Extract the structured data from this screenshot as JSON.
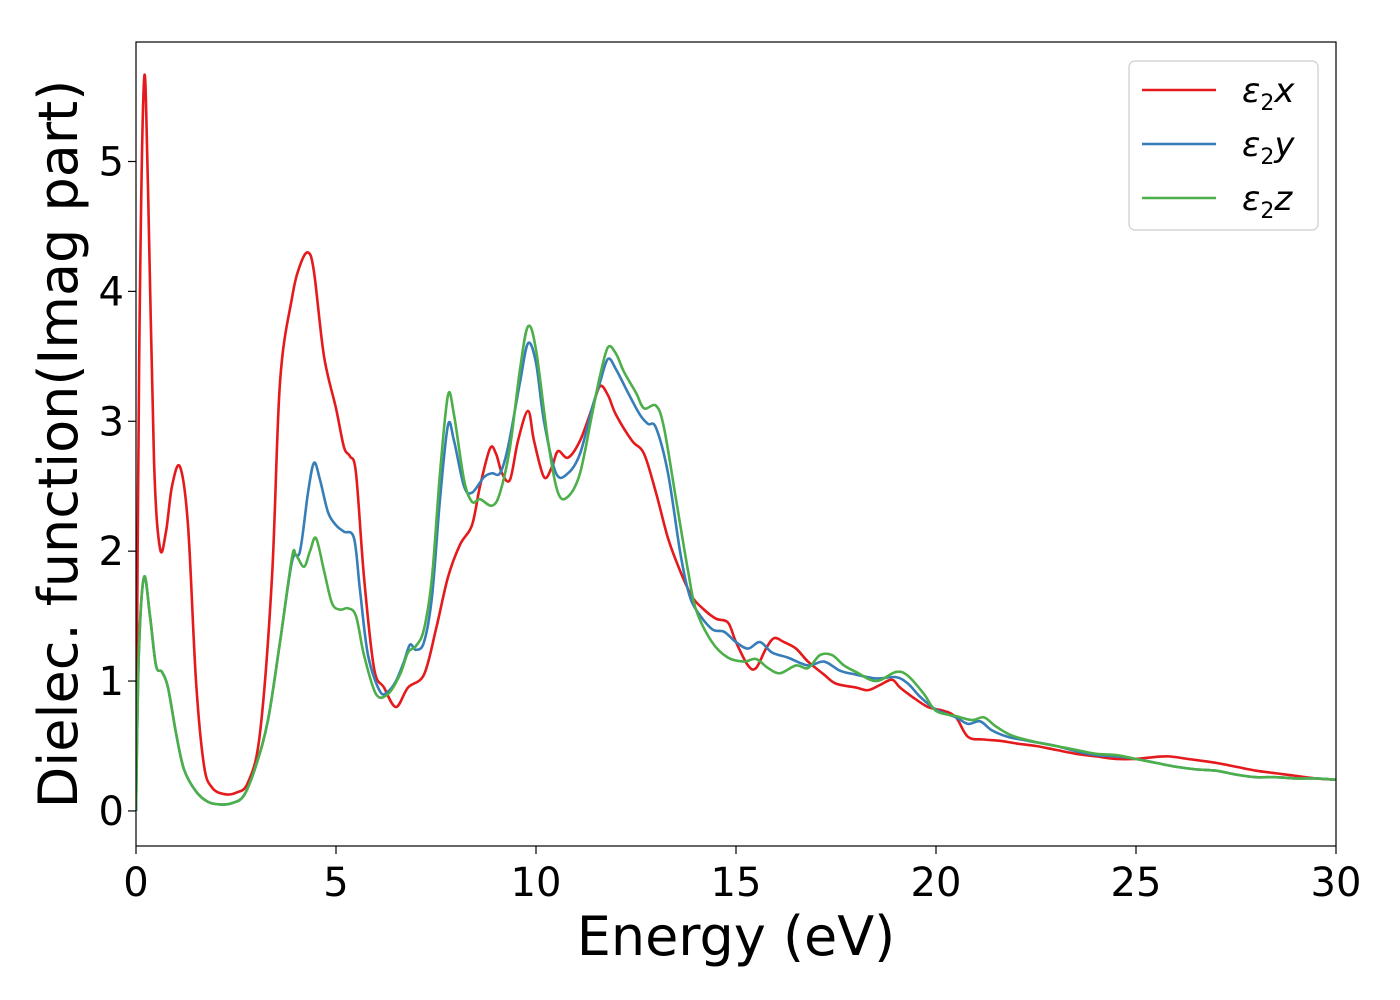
{
  "chart_data": {
    "type": "line",
    "xlabel": "Energy (eV)",
    "ylabel": "Dielec. function(Imag part)",
    "xlim": [
      0,
      30
    ],
    "ylim": [
      -0.27,
      5.92
    ],
    "xticks": [
      "0",
      "5",
      "10",
      "15",
      "20",
      "25",
      "30"
    ],
    "yticks": [
      "0",
      "1",
      "2",
      "3",
      "4",
      "5"
    ],
    "legend_position": "top-right",
    "grid": false,
    "series": [
      {
        "name": "ε2x",
        "legend": {
          "symbol": "ε",
          "sub": "2",
          "axis": "x"
        },
        "color": "#e41a1c",
        "points": [
          [
            0,
            0
          ],
          [
            0.08,
            3.5
          ],
          [
            0.2,
            5.62
          ],
          [
            0.3,
            4.8
          ],
          [
            0.45,
            2.7
          ],
          [
            0.6,
            2.02
          ],
          [
            0.75,
            2.15
          ],
          [
            0.9,
            2.5
          ],
          [
            1.1,
            2.65
          ],
          [
            1.3,
            2.2
          ],
          [
            1.5,
            1.0
          ],
          [
            1.7,
            0.35
          ],
          [
            1.9,
            0.18
          ],
          [
            2.2,
            0.13
          ],
          [
            2.5,
            0.14
          ],
          [
            2.8,
            0.22
          ],
          [
            3.1,
            0.6
          ],
          [
            3.4,
            1.8
          ],
          [
            3.6,
            3.3
          ],
          [
            3.9,
            3.95
          ],
          [
            4.1,
            4.2
          ],
          [
            4.3,
            4.3
          ],
          [
            4.45,
            4.15
          ],
          [
            4.7,
            3.5
          ],
          [
            5.0,
            3.1
          ],
          [
            5.2,
            2.8
          ],
          [
            5.35,
            2.73
          ],
          [
            5.5,
            2.6
          ],
          [
            5.7,
            1.8
          ],
          [
            5.95,
            1.1
          ],
          [
            6.2,
            0.95
          ],
          [
            6.5,
            0.8
          ],
          [
            6.8,
            0.95
          ],
          [
            7.2,
            1.05
          ],
          [
            7.5,
            1.4
          ],
          [
            7.8,
            1.8
          ],
          [
            8.1,
            2.05
          ],
          [
            8.4,
            2.2
          ],
          [
            8.6,
            2.5
          ],
          [
            8.85,
            2.79
          ],
          [
            9.0,
            2.75
          ],
          [
            9.15,
            2.6
          ],
          [
            9.35,
            2.55
          ],
          [
            9.55,
            2.85
          ],
          [
            9.8,
            3.08
          ],
          [
            9.95,
            2.85
          ],
          [
            10.2,
            2.57
          ],
          [
            10.4,
            2.65
          ],
          [
            10.55,
            2.77
          ],
          [
            10.8,
            2.72
          ],
          [
            11.1,
            2.85
          ],
          [
            11.4,
            3.1
          ],
          [
            11.6,
            3.27
          ],
          [
            11.8,
            3.2
          ],
          [
            12.0,
            3.05
          ],
          [
            12.4,
            2.85
          ],
          [
            12.7,
            2.75
          ],
          [
            13.0,
            2.45
          ],
          [
            13.3,
            2.1
          ],
          [
            13.6,
            1.85
          ],
          [
            13.9,
            1.65
          ],
          [
            14.2,
            1.55
          ],
          [
            14.5,
            1.48
          ],
          [
            14.8,
            1.45
          ],
          [
            15.0,
            1.3
          ],
          [
            15.3,
            1.12
          ],
          [
            15.5,
            1.1
          ],
          [
            15.75,
            1.25
          ],
          [
            15.95,
            1.33
          ],
          [
            16.2,
            1.3
          ],
          [
            16.5,
            1.25
          ],
          [
            16.8,
            1.15
          ],
          [
            17.2,
            1.05
          ],
          [
            17.5,
            0.98
          ],
          [
            18.0,
            0.95
          ],
          [
            18.3,
            0.93
          ],
          [
            18.6,
            0.97
          ],
          [
            18.9,
            1.01
          ],
          [
            19.1,
            0.95
          ],
          [
            19.4,
            0.88
          ],
          [
            19.8,
            0.8
          ],
          [
            20.2,
            0.77
          ],
          [
            20.5,
            0.72
          ],
          [
            20.8,
            0.57
          ],
          [
            21.2,
            0.55
          ],
          [
            21.6,
            0.54
          ],
          [
            22.0,
            0.52
          ],
          [
            22.5,
            0.5
          ],
          [
            23.0,
            0.47
          ],
          [
            23.5,
            0.44
          ],
          [
            24.0,
            0.42
          ],
          [
            24.5,
            0.4
          ],
          [
            25.0,
            0.4
          ],
          [
            25.3,
            0.41
          ],
          [
            25.8,
            0.42
          ],
          [
            26.3,
            0.4
          ],
          [
            27.0,
            0.37
          ],
          [
            27.5,
            0.34
          ],
          [
            28.0,
            0.31
          ],
          [
            28.5,
            0.29
          ],
          [
            29.0,
            0.27
          ],
          [
            29.5,
            0.25
          ],
          [
            30.0,
            0.24
          ]
        ]
      },
      {
        "name": "ε2y",
        "legend": {
          "symbol": "ε",
          "sub": "2",
          "axis": "y"
        },
        "color": "#377eb8",
        "points": [
          [
            0,
            0
          ],
          [
            0.07,
            1.2
          ],
          [
            0.2,
            1.8
          ],
          [
            0.35,
            1.5
          ],
          [
            0.5,
            1.12
          ],
          [
            0.65,
            1.07
          ],
          [
            0.8,
            0.95
          ],
          [
            1.0,
            0.6
          ],
          [
            1.2,
            0.32
          ],
          [
            1.5,
            0.15
          ],
          [
            1.8,
            0.07
          ],
          [
            2.1,
            0.05
          ],
          [
            2.4,
            0.06
          ],
          [
            2.7,
            0.12
          ],
          [
            3.0,
            0.35
          ],
          [
            3.3,
            0.7
          ],
          [
            3.6,
            1.3
          ],
          [
            3.9,
            1.92
          ],
          [
            4.1,
            2.0
          ],
          [
            4.3,
            2.45
          ],
          [
            4.45,
            2.68
          ],
          [
            4.6,
            2.55
          ],
          [
            4.8,
            2.3
          ],
          [
            5.0,
            2.2
          ],
          [
            5.2,
            2.15
          ],
          [
            5.45,
            2.1
          ],
          [
            5.6,
            1.7
          ],
          [
            5.8,
            1.2
          ],
          [
            6.1,
            0.92
          ],
          [
            6.3,
            0.92
          ],
          [
            6.5,
            1.0
          ],
          [
            6.7,
            1.15
          ],
          [
            6.85,
            1.28
          ],
          [
            7.0,
            1.24
          ],
          [
            7.2,
            1.3
          ],
          [
            7.4,
            1.65
          ],
          [
            7.6,
            2.4
          ],
          [
            7.8,
            2.97
          ],
          [
            7.95,
            2.85
          ],
          [
            8.2,
            2.5
          ],
          [
            8.4,
            2.45
          ],
          [
            8.7,
            2.57
          ],
          [
            8.9,
            2.6
          ],
          [
            9.1,
            2.6
          ],
          [
            9.3,
            2.8
          ],
          [
            9.6,
            3.3
          ],
          [
            9.8,
            3.6
          ],
          [
            10.0,
            3.45
          ],
          [
            10.2,
            3.0
          ],
          [
            10.5,
            2.6
          ],
          [
            10.8,
            2.6
          ],
          [
            11.1,
            2.75
          ],
          [
            11.4,
            3.1
          ],
          [
            11.6,
            3.3
          ],
          [
            11.8,
            3.48
          ],
          [
            12.0,
            3.4
          ],
          [
            12.3,
            3.22
          ],
          [
            12.6,
            3.05
          ],
          [
            12.8,
            2.98
          ],
          [
            13.0,
            2.95
          ],
          [
            13.3,
            2.6
          ],
          [
            13.6,
            2.0
          ],
          [
            13.8,
            1.7
          ],
          [
            14.0,
            1.55
          ],
          [
            14.4,
            1.4
          ],
          [
            14.7,
            1.38
          ],
          [
            15.0,
            1.3
          ],
          [
            15.3,
            1.25
          ],
          [
            15.6,
            1.3
          ],
          [
            15.9,
            1.22
          ],
          [
            16.3,
            1.18
          ],
          [
            16.8,
            1.12
          ],
          [
            17.2,
            1.15
          ],
          [
            17.6,
            1.08
          ],
          [
            18.0,
            1.05
          ],
          [
            18.5,
            1.02
          ],
          [
            19.0,
            1.03
          ],
          [
            19.3,
            0.98
          ],
          [
            19.6,
            0.88
          ],
          [
            20.0,
            0.78
          ],
          [
            20.5,
            0.72
          ],
          [
            20.8,
            0.67
          ],
          [
            21.1,
            0.69
          ],
          [
            21.4,
            0.62
          ],
          [
            21.8,
            0.57
          ],
          [
            22.3,
            0.54
          ],
          [
            23.0,
            0.5
          ],
          [
            23.5,
            0.46
          ],
          [
            24.0,
            0.43
          ],
          [
            24.5,
            0.42
          ],
          [
            25.0,
            0.4
          ],
          [
            25.5,
            0.37
          ],
          [
            26.0,
            0.34
          ],
          [
            26.5,
            0.32
          ],
          [
            27.0,
            0.31
          ],
          [
            27.5,
            0.28
          ],
          [
            28.0,
            0.26
          ],
          [
            28.5,
            0.26
          ],
          [
            29.0,
            0.25
          ],
          [
            29.5,
            0.25
          ],
          [
            30.0,
            0.24
          ]
        ]
      },
      {
        "name": "ε2z",
        "legend": {
          "symbol": "ε",
          "sub": "2",
          "axis": "z"
        },
        "color": "#4daf4a",
        "points": [
          [
            0,
            0
          ],
          [
            0.07,
            1.2
          ],
          [
            0.2,
            1.8
          ],
          [
            0.35,
            1.5
          ],
          [
            0.5,
            1.12
          ],
          [
            0.65,
            1.07
          ],
          [
            0.8,
            0.95
          ],
          [
            1.0,
            0.6
          ],
          [
            1.2,
            0.32
          ],
          [
            1.5,
            0.15
          ],
          [
            1.8,
            0.07
          ],
          [
            2.1,
            0.05
          ],
          [
            2.4,
            0.06
          ],
          [
            2.7,
            0.12
          ],
          [
            3.0,
            0.35
          ],
          [
            3.3,
            0.7
          ],
          [
            3.6,
            1.3
          ],
          [
            3.9,
            1.95
          ],
          [
            4.0,
            1.97
          ],
          [
            4.2,
            1.88
          ],
          [
            4.35,
            2.0
          ],
          [
            4.5,
            2.1
          ],
          [
            4.7,
            1.85
          ],
          [
            4.9,
            1.6
          ],
          [
            5.1,
            1.55
          ],
          [
            5.3,
            1.56
          ],
          [
            5.5,
            1.5
          ],
          [
            5.7,
            1.2
          ],
          [
            6.0,
            0.9
          ],
          [
            6.3,
            0.9
          ],
          [
            6.6,
            1.05
          ],
          [
            6.8,
            1.22
          ],
          [
            7.0,
            1.27
          ],
          [
            7.2,
            1.4
          ],
          [
            7.4,
            1.8
          ],
          [
            7.6,
            2.6
          ],
          [
            7.8,
            3.2
          ],
          [
            7.95,
            3.05
          ],
          [
            8.2,
            2.55
          ],
          [
            8.4,
            2.38
          ],
          [
            8.6,
            2.4
          ],
          [
            8.9,
            2.35
          ],
          [
            9.1,
            2.45
          ],
          [
            9.35,
            2.8
          ],
          [
            9.6,
            3.4
          ],
          [
            9.8,
            3.73
          ],
          [
            10.0,
            3.55
          ],
          [
            10.3,
            2.85
          ],
          [
            10.55,
            2.45
          ],
          [
            10.8,
            2.42
          ],
          [
            11.1,
            2.6
          ],
          [
            11.4,
            3.05
          ],
          [
            11.6,
            3.35
          ],
          [
            11.8,
            3.57
          ],
          [
            12.0,
            3.52
          ],
          [
            12.2,
            3.38
          ],
          [
            12.5,
            3.22
          ],
          [
            12.7,
            3.1
          ],
          [
            13.0,
            3.12
          ],
          [
            13.2,
            2.95
          ],
          [
            13.5,
            2.4
          ],
          [
            13.8,
            1.85
          ],
          [
            14.0,
            1.55
          ],
          [
            14.4,
            1.3
          ],
          [
            14.8,
            1.18
          ],
          [
            15.2,
            1.15
          ],
          [
            15.5,
            1.17
          ],
          [
            15.8,
            1.1
          ],
          [
            16.1,
            1.06
          ],
          [
            16.5,
            1.12
          ],
          [
            16.8,
            1.1
          ],
          [
            17.1,
            1.2
          ],
          [
            17.4,
            1.2
          ],
          [
            17.7,
            1.12
          ],
          [
            18.0,
            1.07
          ],
          [
            18.5,
            1.0
          ],
          [
            19.0,
            1.07
          ],
          [
            19.3,
            1.04
          ],
          [
            19.7,
            0.9
          ],
          [
            20.0,
            0.77
          ],
          [
            20.5,
            0.73
          ],
          [
            20.9,
            0.7
          ],
          [
            21.2,
            0.72
          ],
          [
            21.5,
            0.65
          ],
          [
            21.9,
            0.58
          ],
          [
            22.5,
            0.53
          ],
          [
            23.0,
            0.5
          ],
          [
            23.5,
            0.47
          ],
          [
            24.0,
            0.44
          ],
          [
            24.5,
            0.43
          ],
          [
            25.0,
            0.4
          ],
          [
            25.5,
            0.37
          ],
          [
            26.0,
            0.34
          ],
          [
            26.5,
            0.32
          ],
          [
            27.0,
            0.31
          ],
          [
            27.5,
            0.28
          ],
          [
            28.0,
            0.26
          ],
          [
            28.5,
            0.26
          ],
          [
            29.0,
            0.25
          ],
          [
            29.5,
            0.25
          ],
          [
            30.0,
            0.24
          ]
        ]
      }
    ]
  }
}
